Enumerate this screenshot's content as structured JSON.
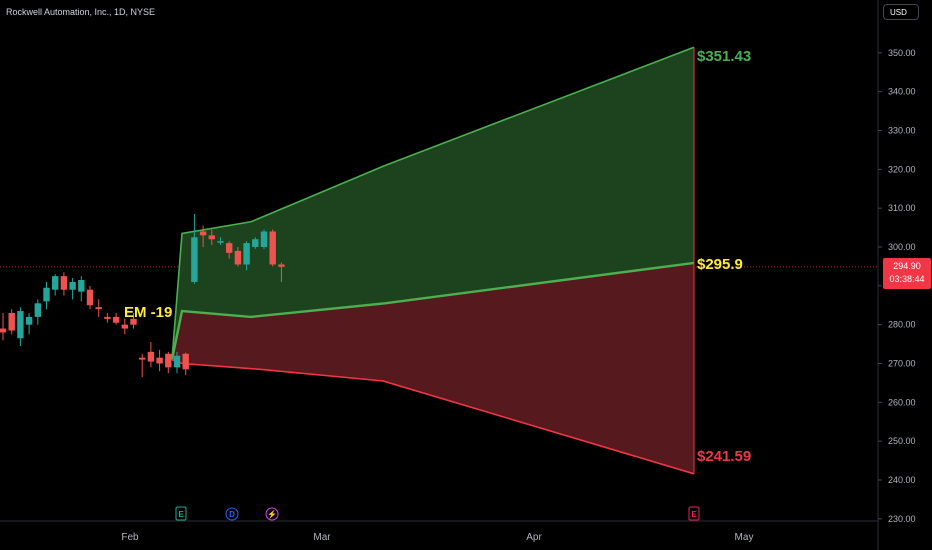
{
  "header": {
    "symbol_title": "Rockwell Automation, Inc., 1D, NYSE",
    "currency": "USD"
  },
  "price_tag": {
    "price": "294.90",
    "countdown": "03:38:44",
    "color": "#f23645"
  },
  "annotations": {
    "em_label": "EM -19",
    "upper_target": "$351.43",
    "mid_target": "$295.9",
    "lower_target": "$241.59"
  },
  "events": [
    {
      "label": "E",
      "name": "earnings-event-icon",
      "color": "#22ab94"
    },
    {
      "label": "D",
      "name": "dividend-event-icon",
      "color": "#2962ff"
    },
    {
      "label": "⚡",
      "name": "split-event-icon",
      "color": "#e040fb"
    },
    {
      "label": "E",
      "name": "future-earnings-event-icon",
      "color": "#e91e63"
    }
  ],
  "chart_data": {
    "type": "candlestick",
    "title": "Rockwell Automation, Inc., 1D, NYSE",
    "currency": "USD",
    "ylim": [
      230,
      356
    ],
    "y_ticks": [
      "350.00",
      "340.00",
      "330.00",
      "320.00",
      "310.00",
      "300.00",
      "290.00",
      "280.00",
      "270.00",
      "260.00",
      "250.00",
      "240.00",
      "230.00"
    ],
    "x_ticks": [
      "Feb",
      "Mar",
      "Apr",
      "May"
    ],
    "last_price": 294.9,
    "colors": {
      "up": "#26a69a",
      "down": "#ef5350",
      "band_upper": "#4caf50",
      "band_lower": "#f23645",
      "mid_line": "#4caf50"
    },
    "candles": [
      {
        "o": 279.0,
        "h": 283.0,
        "l": 276.0,
        "c": 278.0
      },
      {
        "o": 283.0,
        "h": 284.0,
        "l": 277.5,
        "c": 278.5
      },
      {
        "o": 276.5,
        "h": 284.5,
        "l": 274.5,
        "c": 283.5
      },
      {
        "o": 280.0,
        "h": 283.0,
        "l": 277.5,
        "c": 282.0
      },
      {
        "o": 282.0,
        "h": 286.5,
        "l": 280.0,
        "c": 285.5
      },
      {
        "o": 286.0,
        "h": 291.0,
        "l": 284.0,
        "c": 289.5
      },
      {
        "o": 289.0,
        "h": 293.0,
        "l": 287.5,
        "c": 292.5
      },
      {
        "o": 292.5,
        "h": 293.5,
        "l": 287.5,
        "c": 289.0
      },
      {
        "o": 289.0,
        "h": 292.0,
        "l": 286.5,
        "c": 291.0
      },
      {
        "o": 288.5,
        "h": 292.5,
        "l": 286.0,
        "c": 291.5
      },
      {
        "o": 289.0,
        "h": 290.0,
        "l": 284.0,
        "c": 285.0
      },
      {
        "o": 284.5,
        "h": 286.5,
        "l": 282.0,
        "c": 284.0
      },
      {
        "o": 282.0,
        "h": 283.0,
        "l": 280.5,
        "c": 281.5
      },
      {
        "o": 282.0,
        "h": 283.0,
        "l": 280.0,
        "c": 280.5
      },
      {
        "o": 280.0,
        "h": 281.5,
        "l": 277.5,
        "c": 279.0
      },
      {
        "o": 281.5,
        "h": 283.0,
        "l": 279.0,
        "c": 280.0
      },
      {
        "o": 271.5,
        "h": 272.5,
        "l": 266.5,
        "c": 271.0
      },
      {
        "o": 273.0,
        "h": 275.5,
        "l": 269.0,
        "c": 270.5
      },
      {
        "o": 271.5,
        "h": 273.5,
        "l": 268.0,
        "c": 270.0
      },
      {
        "o": 272.5,
        "h": 273.0,
        "l": 267.5,
        "c": 269.0
      },
      {
        "o": 269.0,
        "h": 273.0,
        "l": 267.5,
        "c": 272.0
      },
      {
        "o": 272.5,
        "h": 272.8,
        "l": 267.0,
        "c": 268.5
      },
      {
        "o": 291.0,
        "h": 308.5,
        "l": 290.5,
        "c": 302.5
      },
      {
        "o": 304.0,
        "h": 305.5,
        "l": 300.0,
        "c": 303.0
      },
      {
        "o": 303.0,
        "h": 304.5,
        "l": 300.5,
        "c": 302.0
      },
      {
        "o": 301.5,
        "h": 302.5,
        "l": 300.5,
        "c": 301.5
      },
      {
        "o": 301.0,
        "h": 301.5,
        "l": 297.0,
        "c": 298.5
      },
      {
        "o": 299.0,
        "h": 300.0,
        "l": 295.0,
        "c": 295.5
      },
      {
        "o": 295.5,
        "h": 301.5,
        "l": 294.0,
        "c": 301.0
      },
      {
        "o": 300.0,
        "h": 302.5,
        "l": 299.5,
        "c": 302.0
      },
      {
        "o": 300.0,
        "h": 304.5,
        "l": 299.5,
        "c": 304.0
      },
      {
        "o": 304.0,
        "h": 304.5,
        "l": 295.0,
        "c": 295.5
      },
      {
        "o": 295.5,
        "h": 296.0,
        "l": 291.0,
        "c": 294.9
      }
    ],
    "bands": {
      "upper": [
        303.5,
        306.5,
        321.0,
        351.43
      ],
      "mid": [
        283.5,
        282.0,
        285.5,
        295.9
      ],
      "lower": [
        270.0,
        268.5,
        265.5,
        241.59
      ],
      "start_value": 271.0
    },
    "reference_line": 295.5
  }
}
